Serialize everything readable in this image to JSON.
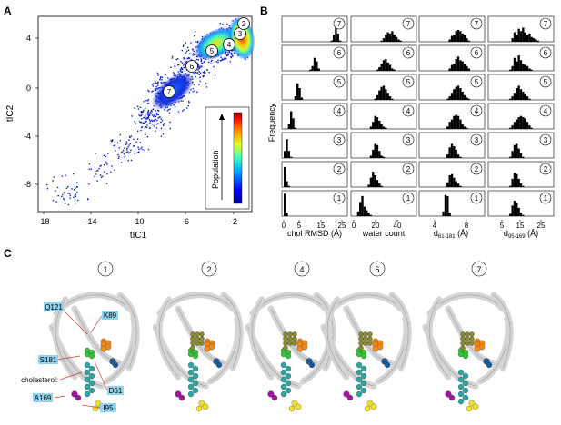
{
  "panels": {
    "a": {
      "letter": "A",
      "xlabel": "tIC1",
      "ylabel": "tIC2",
      "colorbar_label": "Population",
      "xticks": [
        "-18",
        "-14",
        "-10",
        "-6",
        "-2"
      ],
      "yticks": [
        "4",
        "0",
        "-4",
        "-8"
      ],
      "state_labels": [
        "7",
        "6",
        "5",
        "4",
        "3",
        "2"
      ]
    },
    "b": {
      "letter": "B",
      "ylabel": "Frequency",
      "row_states": [
        "7",
        "6",
        "5",
        "4",
        "3",
        "2",
        "1"
      ],
      "columns": [
        {
          "xlabel": "chol RMSD (Å)",
          "ticks": [
            "0",
            "5",
            "15",
            "25"
          ]
        },
        {
          "xlabel": "water count",
          "ticks": [
            "0",
            "20",
            "40"
          ]
        },
        {
          "xlabel_main": "d",
          "xlabel_sub": "61-181",
          "xlabel_unit": " (Å)",
          "ticks": [
            "4",
            "8"
          ]
        },
        {
          "xlabel_main": "d",
          "xlabel_sub": "95-169",
          "xlabel_unit": " (Å)",
          "ticks": [
            "5",
            "15",
            "25"
          ]
        }
      ]
    },
    "c": {
      "letter": "C",
      "states": [
        "1",
        "2",
        "4",
        "5",
        "7"
      ],
      "residue_labels": [
        "Q121",
        "K89",
        "S181",
        "cholesterol",
        "D61",
        "A169",
        "I95"
      ]
    }
  },
  "colors": {
    "tag_bg": "#8fd3ef",
    "orange": "#f08a1a",
    "green": "#35c435",
    "cyan": "#2aa6a0",
    "yellow": "#f0e020",
    "magenta": "#a0189a",
    "blue": "#1a5a9a",
    "olive": "#8a8a30",
    "ribbon": "#d4d4d4"
  },
  "histogram_bins": {
    "chol": [
      [
        0,
        0,
        0,
        0,
        0,
        0,
        0,
        0,
        0,
        0,
        0,
        0,
        0,
        0,
        0,
        0,
        0,
        0,
        0,
        0,
        0,
        0,
        0.05,
        0.3,
        0.6,
        0.35,
        0.05,
        0,
        0
      ],
      [
        0,
        0,
        0,
        0,
        0,
        0,
        0,
        0,
        0,
        0,
        0,
        0,
        0.05,
        0.2,
        0.55,
        0.4,
        0.1,
        0,
        0,
        0,
        0,
        0,
        0,
        0,
        0,
        0,
        0,
        0,
        0
      ],
      [
        0,
        0,
        0,
        0,
        0,
        0.15,
        0.7,
        0.5,
        0.1,
        0,
        0,
        0,
        0,
        0,
        0,
        0,
        0,
        0,
        0,
        0,
        0,
        0,
        0,
        0,
        0,
        0,
        0,
        0,
        0
      ],
      [
        0,
        0,
        0.2,
        0.75,
        0.45,
        0.05,
        0,
        0,
        0,
        0,
        0,
        0,
        0,
        0,
        0,
        0,
        0,
        0,
        0,
        0,
        0,
        0,
        0,
        0,
        0,
        0,
        0,
        0,
        0
      ],
      [
        0.3,
        0.8,
        0.3,
        0.05,
        0,
        0,
        0,
        0,
        0,
        0,
        0,
        0,
        0,
        0,
        0,
        0,
        0,
        0,
        0,
        0,
        0,
        0,
        0,
        0,
        0,
        0,
        0,
        0,
        0
      ],
      [
        0.85,
        0.25,
        0.05,
        0,
        0,
        0,
        0,
        0,
        0,
        0,
        0,
        0,
        0,
        0,
        0,
        0,
        0,
        0,
        0,
        0,
        0,
        0,
        0,
        0,
        0,
        0,
        0,
        0,
        0
      ],
      [
        0.95,
        0.15,
        0,
        0,
        0,
        0,
        0,
        0,
        0,
        0,
        0,
        0,
        0,
        0,
        0,
        0,
        0,
        0,
        0,
        0,
        0,
        0,
        0,
        0,
        0,
        0,
        0,
        0,
        0
      ]
    ],
    "water": [
      [
        0,
        0,
        0,
        0,
        0,
        0,
        0,
        0,
        0,
        0,
        0,
        0,
        0,
        0.05,
        0.15,
        0.3,
        0.4,
        0.35,
        0.45,
        0.3,
        0.2,
        0.1,
        0.05,
        0,
        0,
        0,
        0,
        0,
        0
      ],
      [
        0,
        0,
        0,
        0,
        0,
        0,
        0,
        0,
        0,
        0,
        0,
        0.05,
        0.15,
        0.3,
        0.45,
        0.5,
        0.35,
        0.25,
        0.1,
        0.05,
        0,
        0,
        0,
        0,
        0,
        0,
        0,
        0,
        0
      ],
      [
        0,
        0,
        0,
        0,
        0,
        0,
        0,
        0,
        0,
        0,
        0.05,
        0.2,
        0.4,
        0.55,
        0.6,
        0.45,
        0.3,
        0.15,
        0.05,
        0,
        0,
        0,
        0,
        0,
        0,
        0,
        0,
        0,
        0
      ],
      [
        0,
        0,
        0,
        0,
        0,
        0,
        0,
        0,
        0.1,
        0.3,
        0.55,
        0.5,
        0.35,
        0.2,
        0.1,
        0.05,
        0,
        0,
        0,
        0,
        0,
        0,
        0,
        0,
        0,
        0,
        0,
        0,
        0
      ],
      [
        0,
        0,
        0,
        0,
        0,
        0,
        0,
        0,
        0.1,
        0.35,
        0.6,
        0.55,
        0.3,
        0.1,
        0.05,
        0,
        0,
        0,
        0,
        0,
        0,
        0,
        0,
        0,
        0,
        0,
        0,
        0,
        0
      ],
      [
        0,
        0,
        0,
        0,
        0,
        0,
        0,
        0.1,
        0.4,
        0.65,
        0.5,
        0.3,
        0.15,
        0.05,
        0,
        0,
        0,
        0,
        0,
        0,
        0,
        0,
        0,
        0,
        0,
        0,
        0,
        0,
        0
      ],
      [
        0,
        0,
        0.2,
        0.6,
        0.85,
        0.4,
        0.25,
        0.15,
        0.05,
        0,
        0,
        0,
        0,
        0,
        0,
        0,
        0,
        0,
        0,
        0,
        0,
        0,
        0,
        0,
        0,
        0,
        0,
        0,
        0
      ]
    ],
    "d61": [
      [
        0,
        0,
        0,
        0,
        0,
        0,
        0,
        0,
        0,
        0,
        0,
        0,
        0,
        0.1,
        0.25,
        0.3,
        0.45,
        0.5,
        0.45,
        0.35,
        0.3,
        0.15,
        0.05,
        0,
        0,
        0,
        0,
        0,
        0
      ],
      [
        0,
        0,
        0,
        0,
        0,
        0,
        0,
        0,
        0,
        0,
        0,
        0,
        0,
        0.1,
        0.25,
        0.3,
        0.5,
        0.6,
        0.45,
        0.4,
        0.3,
        0.2,
        0.1,
        0,
        0,
        0,
        0,
        0,
        0
      ],
      [
        0,
        0,
        0,
        0,
        0,
        0,
        0,
        0,
        0,
        0,
        0,
        0,
        0.05,
        0.15,
        0.3,
        0.45,
        0.55,
        0.6,
        0.5,
        0.35,
        0.2,
        0.1,
        0.05,
        0,
        0,
        0,
        0,
        0,
        0
      ],
      [
        0,
        0,
        0,
        0,
        0,
        0,
        0,
        0,
        0,
        0,
        0,
        0,
        0.1,
        0.3,
        0.4,
        0.55,
        0.6,
        0.55,
        0.4,
        0.2,
        0.1,
        0.05,
        0,
        0,
        0,
        0,
        0,
        0,
        0
      ],
      [
        0,
        0,
        0,
        0,
        0,
        0,
        0,
        0,
        0,
        0,
        0,
        0,
        0.15,
        0.45,
        0.6,
        0.5,
        0.35,
        0.15,
        0.05,
        0,
        0,
        0,
        0,
        0,
        0,
        0,
        0,
        0,
        0
      ],
      [
        0,
        0,
        0,
        0,
        0,
        0,
        0,
        0,
        0,
        0,
        0,
        0,
        0.2,
        0.5,
        0.55,
        0.4,
        0.25,
        0.15,
        0.05,
        0,
        0,
        0,
        0,
        0,
        0,
        0,
        0,
        0,
        0
      ],
      [
        0,
        0,
        0,
        0,
        0,
        0,
        0,
        0,
        0,
        0,
        0.2,
        0.9,
        0.85,
        0.15,
        0,
        0,
        0,
        0,
        0,
        0,
        0,
        0,
        0,
        0,
        0,
        0,
        0,
        0,
        0
      ]
    ],
    "d95": [
      [
        0,
        0,
        0,
        0,
        0,
        0,
        0,
        0,
        0,
        0,
        0.15,
        0.4,
        0.3,
        0.55,
        0.45,
        0.6,
        0.4,
        0.3,
        0.35,
        0.2,
        0.15,
        0.1,
        0.05,
        0,
        0,
        0,
        0,
        0,
        0
      ],
      [
        0,
        0,
        0,
        0,
        0,
        0,
        0,
        0,
        0,
        0.05,
        0.2,
        0.55,
        0.4,
        0.65,
        0.45,
        0.3,
        0.25,
        0.2,
        0.1,
        0.05,
        0,
        0,
        0,
        0,
        0,
        0,
        0,
        0,
        0
      ],
      [
        0,
        0,
        0,
        0,
        0,
        0,
        0,
        0,
        0,
        0.05,
        0.15,
        0.3,
        0.5,
        0.6,
        0.45,
        0.35,
        0.25,
        0.15,
        0.05,
        0,
        0,
        0,
        0,
        0,
        0,
        0,
        0,
        0,
        0
      ],
      [
        0,
        0,
        0,
        0,
        0,
        0,
        0,
        0,
        0,
        0.05,
        0.15,
        0.3,
        0.4,
        0.5,
        0.55,
        0.5,
        0.45,
        0.3,
        0.15,
        0.05,
        0,
        0,
        0,
        0,
        0,
        0,
        0,
        0,
        0
      ],
      [
        0,
        0,
        0,
        0,
        0,
        0,
        0,
        0,
        0,
        0.05,
        0.3,
        0.55,
        0.6,
        0.4,
        0.2,
        0.05,
        0,
        0,
        0,
        0,
        0,
        0,
        0,
        0,
        0,
        0,
        0,
        0,
        0
      ],
      [
        0,
        0,
        0,
        0,
        0,
        0,
        0,
        0,
        0,
        0.05,
        0.35,
        0.6,
        0.55,
        0.35,
        0.15,
        0.05,
        0,
        0,
        0,
        0,
        0,
        0,
        0,
        0,
        0,
        0,
        0,
        0,
        0
      ],
      [
        0,
        0,
        0,
        0,
        0,
        0,
        0,
        0,
        0,
        0.1,
        0.45,
        0.65,
        0.55,
        0.35,
        0.15,
        0.05,
        0,
        0,
        0,
        0,
        0,
        0,
        0,
        0,
        0,
        0,
        0,
        0,
        0
      ]
    ]
  }
}
